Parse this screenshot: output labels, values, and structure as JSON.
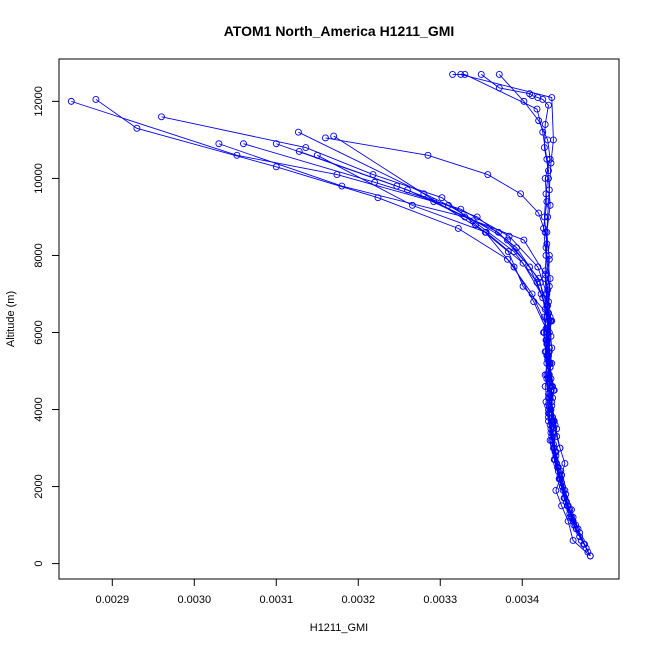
{
  "chart_data": {
    "type": "line",
    "title": "ATOM1 North_America H1211_GMI",
    "xlabel": "H1211_GMI",
    "ylabel": "Altitude (m)",
    "xlim": [
      0.002835,
      0.003518
    ],
    "ylim": [
      -400,
      13100
    ],
    "x_ticks": [
      0.0029,
      0.003,
      0.0031,
      0.0032,
      0.0033,
      0.0034
    ],
    "x_tick_labels": [
      "0.0029",
      "0.0030",
      "0.0031",
      "0.0032",
      "0.0033",
      "0.0034"
    ],
    "y_ticks": [
      0,
      2000,
      4000,
      6000,
      8000,
      10000,
      12000
    ],
    "y_tick_labels": [
      "0",
      "2000",
      "4000",
      "6000",
      "8000",
      "10000",
      "12000"
    ],
    "grid": false,
    "series_color": "#0000ff",
    "series": [
      {
        "x": [
          0.003483,
          0.003462,
          0.003456,
          0.003448,
          0.003441,
          0.003448,
          0.003452,
          0.003446,
          0.003442,
          0.003438,
          0.003435,
          0.003432,
          0.00343,
          0.003436,
          0.003433,
          0.003431,
          0.003434,
          0.003401,
          0.003383,
          0.003343,
          0.003302,
          0.003218,
          0.003136,
          0.00296
        ],
        "y": [
          200,
          600,
          1100,
          1500,
          1900,
          2300,
          2600,
          3000,
          3300,
          3700,
          4000,
          4400,
          4800,
          5200,
          5600,
          6000,
          6400,
          7200,
          8100,
          8800,
          9500,
          10100,
          10800,
          11600
        ]
      },
      {
        "x": [
          0.003483,
          0.003476,
          0.003466,
          0.003458,
          0.003453,
          0.003446,
          0.003441,
          0.003436,
          0.003432,
          0.003437,
          0.003433,
          0.003429,
          0.003431,
          0.003412,
          0.003382,
          0.003322,
          0.003224,
          0.0031,
          0.00293,
          0.00288
        ],
        "y": [
          200,
          500,
          900,
          1300,
          1800,
          2300,
          2800,
          3300,
          3800,
          4300,
          4900,
          5500,
          6100,
          7000,
          7900,
          8700,
          9500,
          10300,
          11300,
          12050
        ]
      },
      {
        "x": [
          0.00348,
          0.00347,
          0.003462,
          0.003452,
          0.003447,
          0.00344,
          0.003436,
          0.003439,
          0.003434,
          0.00343,
          0.003428,
          0.003431,
          0.003425,
          0.003409,
          0.003371,
          0.003292,
          0.003174,
          0.003052,
          0.00285
        ],
        "y": [
          300,
          800,
          1200,
          1700,
          2200,
          2700,
          3200,
          3700,
          4300,
          4900,
          5500,
          6200,
          6900,
          7700,
          8600,
          9400,
          10100,
          10600,
          12000
        ]
      },
      {
        "x": [
          0.003475,
          0.003463,
          0.003455,
          0.003449,
          0.003443,
          0.003438,
          0.003442,
          0.003436,
          0.003433,
          0.003431,
          0.003435,
          0.003428,
          0.003422,
          0.003393,
          0.003345,
          0.003247,
          0.003128
        ],
        "y": [
          500,
          1000,
          1500,
          2000,
          2500,
          3000,
          3500,
          4100,
          4700,
          5300,
          5900,
          6600,
          7300,
          8200,
          9000,
          9800,
          10700
        ]
      },
      {
        "x": [
          0.003478,
          0.003466,
          0.003458,
          0.00345,
          0.003444,
          0.00344,
          0.003435,
          0.003432,
          0.003438,
          0.003434,
          0.00343,
          0.003434,
          0.003423,
          0.003401,
          0.003356,
          0.003266,
          0.00315
        ],
        "y": [
          400,
          900,
          1400,
          1900,
          2400,
          2900,
          3400,
          3900,
          4500,
          5100,
          5700,
          6300,
          7000,
          7800,
          8600,
          9300,
          10600
        ]
      },
      {
        "x": [
          0.00347,
          0.003458,
          0.003451,
          0.003445,
          0.003439,
          0.003434,
          0.003437,
          0.003432,
          0.003428,
          0.003433,
          0.003429,
          0.003414,
          0.00339,
          0.003355,
          0.00328,
          0.00317
        ],
        "y": [
          700,
          1200,
          1700,
          2200,
          2700,
          3200,
          3700,
          4300,
          4900,
          5500,
          6100,
          6800,
          7700,
          8600,
          9600,
          11100
        ]
      },
      {
        "x": [
          0.003468,
          0.00346,
          0.003452,
          0.003447,
          0.003441,
          0.003437,
          0.003433,
          0.003439,
          0.003434,
          0.00343,
          0.003436,
          0.00342,
          0.003382,
          0.00331,
          0.003127
        ],
        "y": [
          900,
          1400,
          1900,
          2400,
          2900,
          3400,
          3900,
          4500,
          5100,
          5700,
          6300,
          7400,
          8400,
          9300,
          11200
        ]
      },
      {
        "x": [
          0.003472,
          0.003462,
          0.003454,
          0.003448,
          0.003442,
          0.003438,
          0.003434,
          0.003431,
          0.003437,
          0.003433,
          0.003429,
          0.003432,
          0.003418,
          0.00339,
          0.00334,
          0.00326,
          0.0031
        ],
        "y": [
          600,
          1100,
          1600,
          2100,
          2600,
          3100,
          3600,
          4100,
          4600,
          5200,
          5800,
          6500,
          7300,
          8100,
          8900,
          9700,
          10900
        ]
      },
      {
        "x": [
          0.003465,
          0.003456,
          0.003449,
          0.003444,
          0.003439,
          0.003435,
          0.003432,
          0.003428,
          0.003434,
          0.00343,
          0.003427,
          0.00343,
          0.003419,
          0.003384,
          0.003325,
          0.00322,
          0.00306
        ],
        "y": [
          1000,
          1500,
          2000,
          2500,
          3000,
          3500,
          4000,
          4600,
          5200,
          5800,
          6400,
          7000,
          7700,
          8500,
          9200,
          9900,
          10900
        ]
      },
      {
        "x": [
          0.00346,
          0.003452,
          0.003446,
          0.00344,
          0.003436,
          0.003432,
          0.003429,
          0.003435,
          0.003431,
          0.003427,
          0.003431,
          0.003428,
          0.003402,
          0.00333,
          0.00318,
          0.00303
        ],
        "y": [
          1200,
          1700,
          2200,
          2700,
          3200,
          3700,
          4200,
          4800,
          5400,
          6000,
          6700,
          7500,
          8400,
          9000,
          9800,
          10900
        ]
      },
      {
        "x": [
          0.003446,
          0.00344,
          0.003436,
          0.003432,
          0.00343,
          0.003433,
          0.00343,
          0.003428,
          0.003433,
          0.003428,
          0.00342,
          0.003398,
          0.003358,
          0.003285,
          0.00316
        ],
        "y": [
          3000,
          3600,
          4200,
          4800,
          5400,
          6000,
          6700,
          7400,
          8000,
          8600,
          9100,
          9600,
          10100,
          10600,
          11050
        ]
      },
      {
        "x": [
          0.00343,
          0.003426,
          0.003432,
          0.003428,
          0.00343,
          0.003427,
          0.003429,
          0.003432,
          0.003427,
          0.003428,
          0.003432,
          0.003425,
          0.003419,
          0.003412,
          0.003409,
          0.003372,
          0.00335
        ],
        "y": [
          5200,
          6000,
          6800,
          7600,
          8300,
          9000,
          9600,
          10200,
          10800,
          11400,
          11900,
          12050,
          12100,
          12150,
          12200,
          12350,
          12700
        ]
      },
      {
        "x": [
          0.003433,
          0.00343,
          0.003433,
          0.003429,
          0.003426,
          0.00343,
          0.003428,
          0.003434,
          0.003431,
          0.00342,
          0.003402,
          0.003372
        ],
        "y": [
          5600,
          6400,
          7200,
          8000,
          8700,
          9400,
          10000,
          10500,
          11000,
          11500,
          12000,
          12700
        ]
      },
      {
        "x": [
          0.003436,
          0.003432,
          0.003435,
          0.003431,
          0.003433,
          0.00343,
          0.003434,
          0.003432,
          0.00343,
          0.003425,
          0.003418,
          0.00333,
          0.003315
        ],
        "y": [
          4600,
          5400,
          6300,
          7100,
          7900,
          8600,
          9300,
          10000,
          10500,
          11200,
          11800,
          12700,
          12700
        ]
      },
      {
        "x": [
          0.003437,
          0.003433,
          0.003436,
          0.003432,
          0.003434,
          0.003429,
          0.003431,
          0.003433,
          0.003435,
          0.003438,
          0.003436,
          0.003325
        ],
        "y": [
          3800,
          4700,
          5600,
          6500,
          7400,
          8200,
          9000,
          9700,
          10400,
          11000,
          12100,
          12700
        ]
      }
    ]
  }
}
